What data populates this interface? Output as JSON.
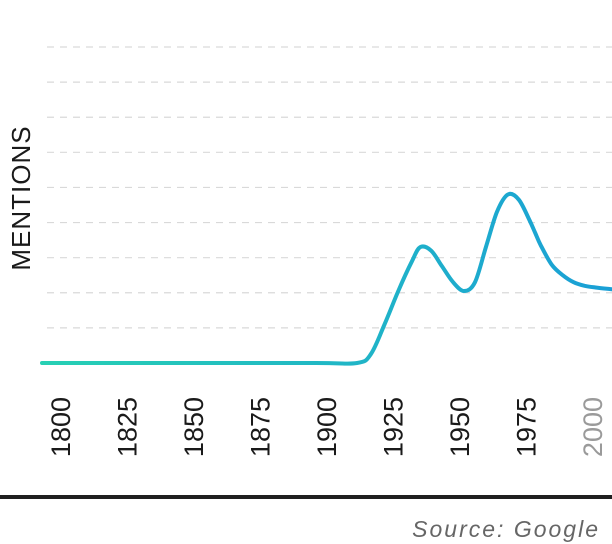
{
  "chart_data": {
    "type": "line",
    "title": "",
    "xlabel": "",
    "ylabel": "MENTIONS",
    "xlim": [
      1800,
      2008
    ],
    "ticks": [
      {
        "label": "1800",
        "value": 1800,
        "muted": false
      },
      {
        "label": "1825",
        "value": 1825,
        "muted": false
      },
      {
        "label": "1850",
        "value": 1850,
        "muted": false
      },
      {
        "label": "1875",
        "value": 1875,
        "muted": false
      },
      {
        "label": "1900",
        "value": 1900,
        "muted": false
      },
      {
        "label": "1925",
        "value": 1925,
        "muted": false
      },
      {
        "label": "1950",
        "value": 1950,
        "muted": false
      },
      {
        "label": "1975",
        "value": 1975,
        "muted": false
      },
      {
        "label": "2000",
        "value": 2000,
        "muted": true
      }
    ],
    "ylim": [
      0,
      9
    ],
    "gridlines": 9,
    "grid": true,
    "line_color_start": "#27d0b4",
    "line_color_end": "#1a9fd6",
    "series": [
      {
        "x": [
          1800,
          1850,
          1900,
          1915,
          1920,
          1925,
          1930,
          1935,
          1938,
          1942,
          1946,
          1950,
          1954,
          1958,
          1962,
          1966,
          1970,
          1974,
          1978,
          1980,
          1982,
          1986,
          1990,
          1994,
          1998,
          2002,
          2008
        ],
        "y": [
          0,
          0,
          0,
          0,
          0.25,
          1.1,
          2.05,
          2.9,
          3.3,
          3.2,
          2.75,
          2.3,
          2.05,
          2.3,
          3.3,
          4.3,
          4.8,
          4.65,
          4.05,
          3.7,
          3.35,
          2.8,
          2.5,
          2.3,
          2.2,
          2.15,
          2.1
        ]
      }
    ]
  },
  "source_text": "Source: Google"
}
